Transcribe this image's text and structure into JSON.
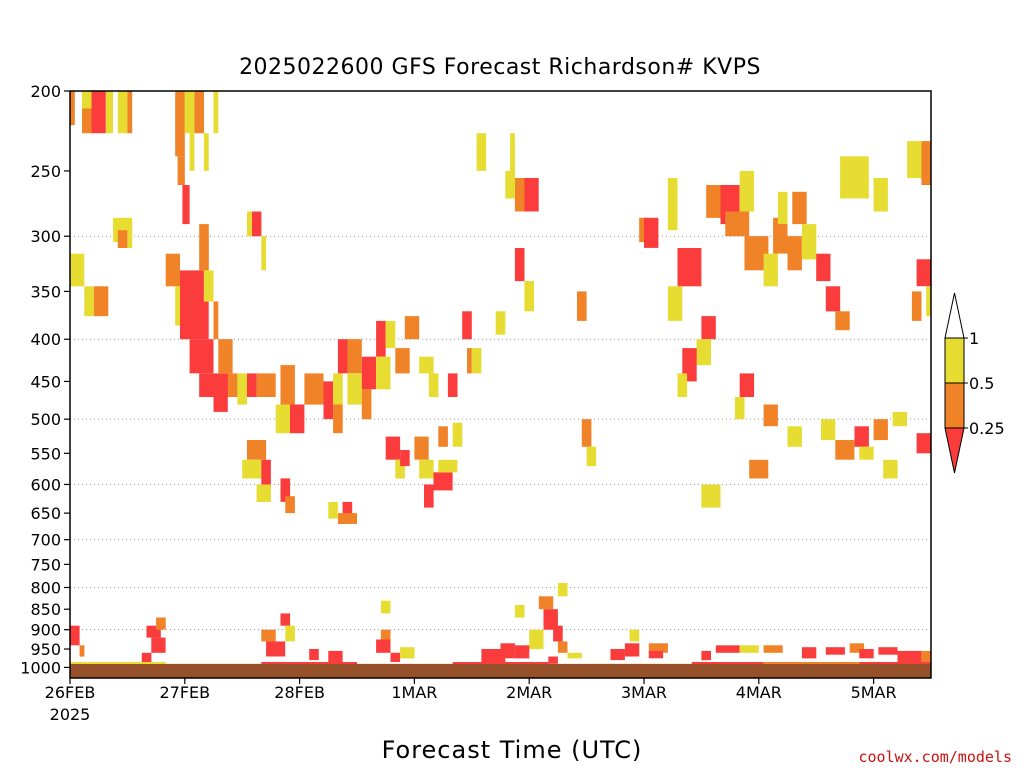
{
  "chart_data": {
    "type": "heatmap",
    "title": "2025022600 GFS Forecast Richardson# KVPS",
    "xlabel": "Forecast Time (UTC)",
    "credit": "coolwx.com/models",
    "y_scale": "log-pressure",
    "ylim": [
      1030,
      200
    ],
    "y_ticks": [
      200,
      250,
      300,
      350,
      400,
      450,
      500,
      550,
      600,
      650,
      700,
      750,
      800,
      850,
      900,
      950,
      1000
    ],
    "y_gridlines": [
      300,
      400,
      500,
      600,
      700,
      800,
      900
    ],
    "xlim_hours": [
      0,
      180
    ],
    "x_ticks": [
      {
        "hour": 0,
        "label": "26FEB",
        "sublabel": "2025"
      },
      {
        "hour": 24,
        "label": "27FEB"
      },
      {
        "hour": 48,
        "label": "28FEB"
      },
      {
        "hour": 72,
        "label": "1MAR"
      },
      {
        "hour": 96,
        "label": "2MAR"
      },
      {
        "hour": 120,
        "label": "3MAR"
      },
      {
        "hour": 144,
        "label": "4MAR"
      },
      {
        "hour": 168,
        "label": "5MAR"
      }
    ],
    "legend": {
      "placement": "right",
      "levels": [
        {
          "label": "1",
          "color": "#ffffff"
        },
        {
          "label": "0.5",
          "color": "#e6dc32"
        },
        {
          "label": "0.25",
          "color": "#f08228"
        },
        {
          "label": "",
          "color": "#fa3c3c"
        }
      ]
    },
    "colors": {
      "low": "#fa3c3c",
      "mid": "#f08228",
      "high": "#e6dc32",
      "ground": "#96502a"
    },
    "note": "cells: [start_hour, end_hour, top_pressure_hPa, bottom_pressure_hPa, class] ; class 1 = Ri<0.25, 2 = 0.25-0.5, 3 = 0.5-1",
    "cells": [
      [
        2.5,
        5,
        200,
        210,
        3
      ],
      [
        2.5,
        4.5,
        210,
        225,
        2
      ],
      [
        4.5,
        7.5,
        200,
        225,
        1
      ],
      [
        7.5,
        9,
        200,
        225,
        3
      ],
      [
        10,
        12,
        200,
        225,
        3
      ],
      [
        12,
        13,
        200,
        225,
        2
      ],
      [
        0,
        1,
        200,
        220,
        2
      ],
      [
        22,
        24,
        200,
        240,
        2
      ],
      [
        22.5,
        24,
        240,
        260,
        2
      ],
      [
        23.5,
        25,
        260,
        290,
        1
      ],
      [
        24,
        26,
        200,
        225,
        3
      ],
      [
        25,
        26,
        225,
        250,
        3
      ],
      [
        26,
        28,
        200,
        225,
        2
      ],
      [
        28,
        29,
        225,
        250,
        3
      ],
      [
        30,
        31,
        200,
        225,
        3
      ],
      [
        9,
        13,
        285,
        305,
        3
      ],
      [
        10,
        12,
        295,
        310,
        2
      ],
      [
        12,
        13,
        290,
        310,
        3
      ],
      [
        0,
        3,
        315,
        345,
        3
      ],
      [
        3,
        5,
        345,
        375,
        3
      ],
      [
        5,
        8,
        345,
        375,
        2
      ],
      [
        20,
        23,
        315,
        345,
        2
      ],
      [
        22,
        23,
        345,
        385,
        3
      ],
      [
        23,
        28,
        330,
        360,
        1
      ],
      [
        23,
        29,
        360,
        400,
        1
      ],
      [
        25,
        30,
        400,
        440,
        1
      ],
      [
        27,
        34,
        440,
        470,
        1
      ],
      [
        30,
        33,
        470,
        490,
        1
      ],
      [
        33,
        35,
        440,
        470,
        2
      ],
      [
        27,
        29,
        290,
        330,
        2
      ],
      [
        28,
        30,
        330,
        360,
        3
      ],
      [
        30,
        31,
        360,
        400,
        2
      ],
      [
        31,
        34,
        400,
        440,
        2
      ],
      [
        35,
        37,
        440,
        480,
        3
      ],
      [
        37,
        39,
        440,
        470,
        1
      ],
      [
        39,
        43,
        440,
        470,
        2
      ],
      [
        38,
        40,
        280,
        300,
        1
      ],
      [
        37,
        38,
        280,
        300,
        3
      ],
      [
        40,
        41,
        300,
        330,
        3
      ],
      [
        44,
        47,
        430,
        480,
        2
      ],
      [
        43,
        46,
        480,
        520,
        3
      ],
      [
        46,
        49,
        480,
        520,
        1
      ],
      [
        49,
        53,
        440,
        480,
        2
      ],
      [
        53,
        55,
        450,
        500,
        1
      ],
      [
        55,
        57,
        440,
        480,
        3
      ],
      [
        56,
        58,
        400,
        440,
        1
      ],
      [
        55,
        57,
        480,
        520,
        2
      ],
      [
        58,
        61,
        400,
        440,
        2
      ],
      [
        58,
        61,
        440,
        480,
        3
      ],
      [
        61,
        64,
        420,
        460,
        1
      ],
      [
        61,
        63,
        460,
        500,
        2
      ],
      [
        64,
        66,
        380,
        420,
        1
      ],
      [
        64,
        67,
        420,
        460,
        3
      ],
      [
        37,
        41,
        530,
        560,
        2
      ],
      [
        36,
        40,
        560,
        590,
        3
      ],
      [
        40,
        42,
        560,
        600,
        1
      ],
      [
        39,
        42,
        600,
        630,
        3
      ],
      [
        44,
        46,
        590,
        630,
        1
      ],
      [
        45,
        47,
        620,
        650,
        2
      ],
      [
        57,
        59,
        630,
        660,
        1
      ],
      [
        56,
        60,
        650,
        670,
        2
      ],
      [
        54,
        56,
        630,
        660,
        3
      ],
      [
        66,
        69,
        525,
        560,
        1
      ],
      [
        68,
        70,
        560,
        590,
        3
      ],
      [
        69,
        71,
        545,
        570,
        1
      ],
      [
        72,
        75,
        525,
        560,
        2
      ],
      [
        73,
        76,
        560,
        590,
        3
      ],
      [
        76,
        80,
        580,
        610,
        1
      ],
      [
        77,
        81,
        560,
        580,
        3
      ],
      [
        74,
        76,
        600,
        640,
        1
      ],
      [
        77,
        79,
        510,
        540,
        2
      ],
      [
        80,
        82,
        505,
        540,
        3
      ],
      [
        73,
        76,
        420,
        440,
        3
      ],
      [
        75,
        77,
        440,
        470,
        3
      ],
      [
        79,
        81,
        440,
        470,
        1
      ],
      [
        83,
        84,
        410,
        440,
        2
      ],
      [
        68,
        71,
        410,
        440,
        2
      ],
      [
        66,
        68,
        380,
        410,
        3
      ],
      [
        70,
        73,
        375,
        400,
        2
      ],
      [
        82,
        84,
        370,
        400,
        1
      ],
      [
        84,
        86,
        410,
        440,
        3
      ],
      [
        89,
        91,
        370,
        395,
        3
      ],
      [
        93,
        95,
        310,
        340,
        1
      ],
      [
        95,
        97,
        340,
        370,
        3
      ],
      [
        93,
        96,
        255,
        280,
        2
      ],
      [
        95,
        98,
        255,
        280,
        1
      ],
      [
        91,
        93,
        250,
        270,
        3
      ],
      [
        85,
        87,
        225,
        250,
        3
      ],
      [
        92,
        93,
        225,
        260,
        3
      ],
      [
        106,
        108,
        350,
        380,
        2
      ],
      [
        107,
        109,
        500,
        540,
        2
      ],
      [
        108,
        110,
        540,
        570,
        3
      ],
      [
        119,
        121,
        285,
        305,
        2
      ],
      [
        120,
        123,
        285,
        310,
        1
      ],
      [
        125,
        127,
        255,
        285,
        3
      ],
      [
        127,
        132,
        310,
        345,
        1
      ],
      [
        125,
        128,
        345,
        380,
        3
      ],
      [
        125,
        127,
        270,
        295,
        3
      ],
      [
        132,
        135,
        375,
        400,
        1
      ],
      [
        131,
        134,
        400,
        430,
        3
      ],
      [
        128,
        131,
        410,
        450,
        1
      ],
      [
        127,
        129,
        440,
        470,
        3
      ],
      [
        133,
        136,
        260,
        285,
        2
      ],
      [
        136,
        140,
        260,
        290,
        1
      ],
      [
        137,
        142,
        280,
        300,
        2
      ],
      [
        140,
        143,
        250,
        280,
        3
      ],
      [
        141,
        146,
        300,
        330,
        2
      ],
      [
        145,
        148,
        315,
        345,
        3
      ],
      [
        147,
        150,
        285,
        315,
        2
      ],
      [
        148,
        150,
        265,
        290,
        3
      ],
      [
        151,
        154,
        265,
        290,
        2
      ],
      [
        150,
        153,
        300,
        330,
        2
      ],
      [
        153,
        156,
        290,
        320,
        3
      ],
      [
        156,
        159,
        315,
        340,
        1
      ],
      [
        158,
        161,
        345,
        370,
        1
      ],
      [
        160,
        163,
        370,
        390,
        2
      ],
      [
        161,
        167,
        240,
        270,
        3
      ],
      [
        168,
        171,
        255,
        280,
        3
      ],
      [
        175,
        178,
        230,
        255,
        3
      ],
      [
        178,
        180,
        230,
        260,
        2
      ],
      [
        177,
        180,
        320,
        345,
        1
      ],
      [
        176,
        178,
        350,
        380,
        2
      ],
      [
        179,
        180,
        345,
        375,
        3
      ],
      [
        140,
        143,
        440,
        470,
        1
      ],
      [
        139,
        141,
        470,
        500,
        3
      ],
      [
        145,
        148,
        480,
        510,
        2
      ],
      [
        150,
        153,
        510,
        540,
        3
      ],
      [
        157,
        160,
        500,
        530,
        3
      ],
      [
        164,
        167,
        510,
        540,
        1
      ],
      [
        165,
        168,
        540,
        560,
        3
      ],
      [
        170,
        173,
        560,
        590,
        3
      ],
      [
        168,
        171,
        500,
        530,
        2
      ],
      [
        172,
        175,
        490,
        510,
        3
      ],
      [
        177,
        180,
        520,
        550,
        1
      ],
      [
        132,
        136,
        600,
        640,
        3
      ],
      [
        142,
        146,
        560,
        590,
        2
      ],
      [
        160,
        164,
        530,
        560,
        2
      ],
      [
        102,
        104,
        790,
        820,
        3
      ],
      [
        98,
        101,
        820,
        850,
        2
      ],
      [
        99,
        102,
        850,
        900,
        1
      ],
      [
        101,
        103,
        890,
        930,
        1
      ],
      [
        102,
        104,
        930,
        960,
        2
      ],
      [
        96,
        99,
        900,
        950,
        3
      ],
      [
        93,
        95,
        840,
        870,
        3
      ],
      [
        104,
        107,
        960,
        975,
        3
      ],
      [
        100,
        102,
        970,
        990,
        1
      ],
      [
        0,
        2,
        890,
        940,
        1
      ],
      [
        2,
        3,
        940,
        970,
        2
      ],
      [
        16,
        19,
        890,
        920,
        1
      ],
      [
        17,
        20,
        920,
        960,
        1
      ],
      [
        18,
        20,
        870,
        900,
        2
      ],
      [
        15,
        17,
        960,
        985,
        1
      ],
      [
        40,
        43,
        900,
        930,
        2
      ],
      [
        41,
        45,
        930,
        970,
        1
      ],
      [
        44,
        46,
        860,
        890,
        1
      ],
      [
        45,
        47,
        890,
        930,
        3
      ],
      [
        50,
        52,
        950,
        980,
        1
      ],
      [
        54,
        57,
        955,
        985,
        1
      ],
      [
        64,
        67,
        925,
        960,
        1
      ],
      [
        65,
        67,
        900,
        925,
        2
      ],
      [
        67,
        69,
        960,
        985,
        1
      ],
      [
        69,
        72,
        945,
        975,
        3
      ],
      [
        65,
        67,
        830,
        860,
        3
      ],
      [
        86,
        91,
        950,
        985,
        1
      ],
      [
        90,
        93,
        935,
        975,
        1
      ],
      [
        93,
        96,
        940,
        975,
        1
      ],
      [
        113,
        116,
        950,
        980,
        1
      ],
      [
        116,
        119,
        935,
        970,
        1
      ],
      [
        117,
        119,
        900,
        930,
        3
      ],
      [
        121,
        125,
        935,
        960,
        2
      ],
      [
        121,
        124,
        955,
        975,
        1
      ],
      [
        132,
        134,
        955,
        980,
        1
      ],
      [
        135,
        140,
        940,
        960,
        1
      ],
      [
        140,
        144,
        940,
        960,
        3
      ],
      [
        145,
        149,
        940,
        960,
        2
      ],
      [
        153,
        156,
        945,
        975,
        1
      ],
      [
        158,
        162,
        945,
        965,
        1
      ],
      [
        163,
        166,
        935,
        960,
        2
      ],
      [
        165,
        168,
        950,
        975,
        1
      ],
      [
        169,
        173,
        945,
        965,
        1
      ],
      [
        173,
        178,
        955,
        985,
        1
      ],
      [
        178,
        180,
        955,
        985,
        2
      ],
      [
        0,
        20,
        985,
        995,
        3
      ],
      [
        20,
        40,
        990,
        1000,
        2
      ],
      [
        40,
        60,
        985,
        995,
        1
      ],
      [
        60,
        80,
        990,
        1000,
        2
      ],
      [
        80,
        100,
        985,
        1000,
        1
      ],
      [
        100,
        120,
        990,
        1000,
        2
      ],
      [
        120,
        130,
        990,
        1000,
        2
      ],
      [
        130,
        145,
        985,
        995,
        1
      ],
      [
        145,
        165,
        985,
        1000,
        2
      ],
      [
        165,
        180,
        985,
        1000,
        1
      ]
    ]
  }
}
